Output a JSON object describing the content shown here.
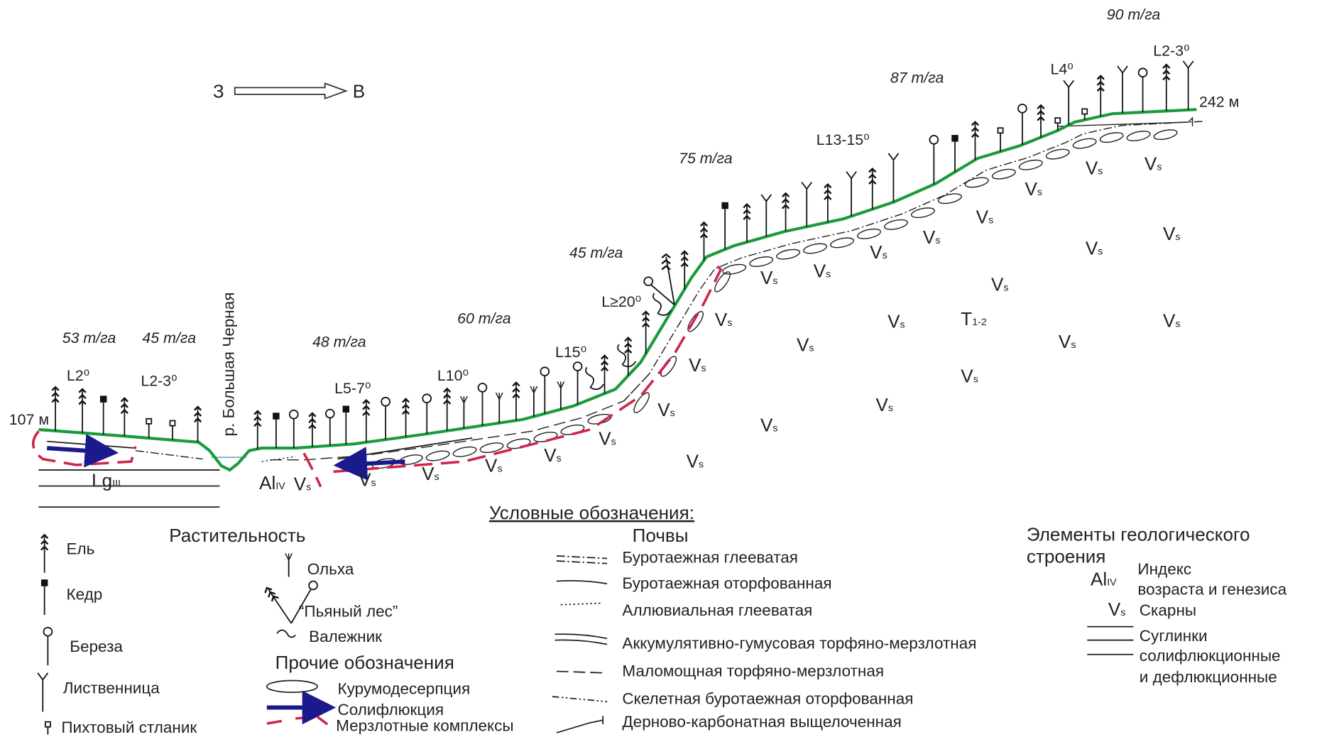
{
  "header": {
    "west": "З",
    "east": "В"
  },
  "profile": {
    "elev_start": "107 м",
    "elev_end": "242 м",
    "river": "р. Большая Черная",
    "stocks": [
      "53 т/га",
      "45 т/га",
      "48 т/га",
      "60 т/га",
      "45 т/га",
      "75 т/га",
      "87 т/га",
      "90 т/га"
    ],
    "slopes": [
      "L2⁰",
      "L2-3⁰",
      "L5-7⁰",
      "L10⁰",
      "L15⁰",
      "L≥20⁰",
      "L13-15⁰",
      "L4⁰",
      "L2-3⁰"
    ],
    "lg": {
      "base": "Lg",
      "sub": "III"
    },
    "al": {
      "base": "Al",
      "sub": "IV"
    },
    "t": {
      "base": "T",
      "sub": "1-2"
    },
    "vs": [
      {
        "base": "V",
        "sub": "s"
      },
      {
        "base": "V",
        "sub": "s"
      },
      {
        "base": "V",
        "sub": "s"
      },
      {
        "base": "V",
        "sub": "s"
      },
      {
        "base": "V",
        "sub": "s"
      },
      {
        "base": "V",
        "sub": "s"
      },
      {
        "base": "V",
        "sub": "s"
      },
      {
        "base": "V",
        "sub": "s"
      },
      {
        "base": "V",
        "sub": "s"
      },
      {
        "base": "V",
        "sub": "s"
      },
      {
        "base": "V",
        "sub": "s"
      },
      {
        "base": "V",
        "sub": "s"
      },
      {
        "base": "V",
        "sub": "s"
      },
      {
        "base": "V",
        "sub": "s"
      },
      {
        "base": "V",
        "sub": "s"
      },
      {
        "base": "V",
        "sub": "s"
      },
      {
        "base": "V",
        "sub": "s"
      },
      {
        "base": "V",
        "sub": "s"
      },
      {
        "base": "V",
        "sub": "s"
      },
      {
        "base": "V",
        "sub": "s"
      },
      {
        "base": "V",
        "sub": "s"
      },
      {
        "base": "V",
        "sub": "s"
      },
      {
        "base": "V",
        "sub": "s"
      },
      {
        "base": "V",
        "sub": "s"
      },
      {
        "base": "V",
        "sub": "s"
      },
      {
        "base": "V",
        "sub": "s"
      },
      {
        "base": "V",
        "sub": "s"
      },
      {
        "base": "V",
        "sub": "s"
      }
    ]
  },
  "legend": {
    "title": "Условные обозначения:",
    "vegetation": {
      "title": "Растительность",
      "items": [
        "Ель",
        "Кедр",
        "Береза",
        "Лиственница",
        "Пихтовый стланик",
        "Ольха",
        "“Пьяный лес”",
        "Валежник"
      ]
    },
    "other": {
      "title": "Прочие обозначения",
      "items": [
        "Курумодесерпция",
        "Солифлюкция",
        "Мерзлотные комплексы"
      ]
    },
    "soils": {
      "title": "Почвы",
      "items": [
        "Буротаежная глееватая",
        "Буротаежная оторфованная",
        "Аллювиальная глееватая",
        "Аккумулятивно-гумусовая торфяно-мерзлотная",
        "Маломощная торфяно-мерзлотная",
        "Скелетная буротаежная оторфованная",
        "Дерново-карбонатная выщелоченная"
      ]
    },
    "geology": {
      "title_lines": [
        "Элементы геологического",
        "строения"
      ],
      "index_symbol": {
        "base": "Al",
        "sub": "IV"
      },
      "index_lines": [
        "Индекс",
        "возраста и генезиса"
      ],
      "skarn_symbol": {
        "base": "V",
        "sub": "s"
      },
      "skarn": "Скарны",
      "loam_lines": [
        "Суглинки",
        "солифлюкционные",
        "и дефлюкционные"
      ]
    }
  }
}
